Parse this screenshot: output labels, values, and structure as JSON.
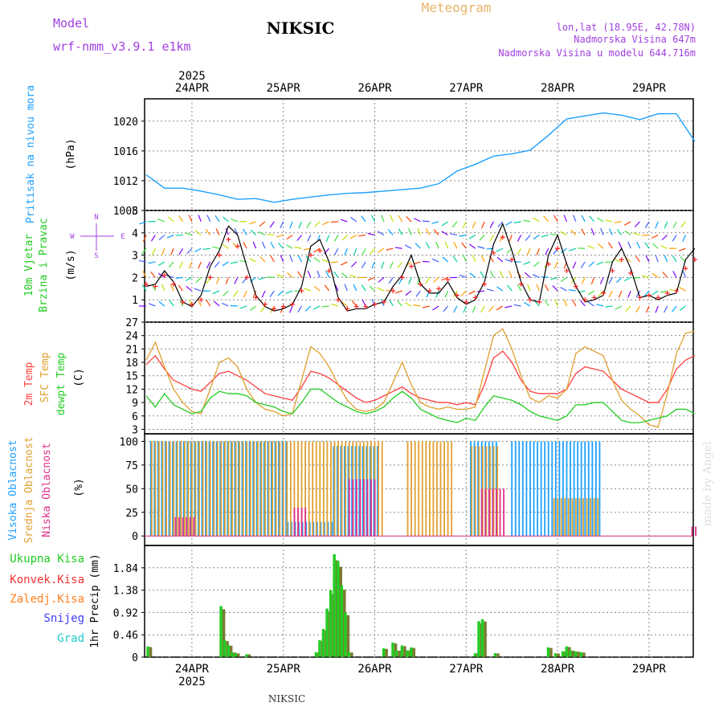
{
  "header": {
    "model_label": "Model",
    "model_name": "wrf-nmm_v3.9.1 e1km",
    "station": "NIKSIC",
    "meteogram": "Meteogram",
    "lonlat": "lon,lat (18.95E, 42.78N)",
    "altitude": "Nadmorska Visina 647m",
    "model_altitude": "Nadmorska Visina u modelu 644.716m",
    "year_top": "2025",
    "year_bottom": "2025",
    "footer_station": "NIKSIC",
    "credit": "made by Angel"
  },
  "colors": {
    "pressure": "#1ca0ff",
    "temp2m": "#ff3f3f",
    "sfc": "#e0a030",
    "dewpt": "#22cc22",
    "wind": "#000000",
    "gust": "#ff2020",
    "high_cloud": "#1ca0ff",
    "mid_cloud": "#e0a030",
    "low_cloud": "#e0308a",
    "total_precip": "#22cc22",
    "conv_precip": "#ee3333",
    "frozen_precip": "#ff8020",
    "snow": "#4040ff",
    "hail": "#22cccc",
    "purple_text": "#a040e0",
    "grid": "#888888"
  },
  "chart_data": [
    {
      "type": "line",
      "panel": "pressure",
      "ylabel": "Pritisak na nivou mora",
      "unit": "(hPa)",
      "ylim": [
        1008,
        1023
      ],
      "yticks": [
        1008,
        1012,
        1016,
        1020
      ],
      "x_days": [
        "24APR",
        "25APR",
        "26APR",
        "27APR",
        "28APR",
        "29APR"
      ],
      "x": [
        0,
        0.2,
        0.4,
        0.6,
        0.8,
        1.0,
        1.2,
        1.4,
        1.6,
        1.8,
        2.0,
        2.2,
        2.4,
        2.6,
        2.8,
        3.0,
        3.2,
        3.4,
        3.6,
        3.8,
        4.0,
        4.2,
        4.4,
        4.6,
        4.8,
        5.0,
        5.2,
        5.4,
        5.6,
        5.8,
        6.0
      ],
      "values": [
        1012.8,
        1011.0,
        1011.0,
        1010.6,
        1010.1,
        1009.5,
        1009.6,
        1009.1,
        1009.5,
        1009.8,
        1010.1,
        1010.3,
        1010.4,
        1010.6,
        1010.8,
        1011.0,
        1011.6,
        1013.3,
        1014.2,
        1015.3,
        1015.6,
        1016.1,
        1018.1,
        1020.3,
        1020.7,
        1021.1,
        1020.8,
        1020.2,
        1021.0,
        1021.0,
        1017.3
      ],
      "grid": true
    },
    {
      "type": "line",
      "panel": "wind",
      "ylabel": "10m Vjetar Brzina i Pravac",
      "unit": "(m/s)",
      "compass": [
        "N",
        "W",
        "E",
        "S"
      ],
      "ylim": [
        0,
        5
      ],
      "yticks": [
        1,
        2,
        3,
        4,
        5
      ],
      "series": [
        {
          "name": "wind",
          "x": [
            0,
            0.1,
            0.2,
            0.3,
            0.4,
            0.5,
            0.6,
            0.7,
            0.8,
            0.9,
            1.0,
            1.1,
            1.2,
            1.3,
            1.4,
            1.5,
            1.6,
            1.7,
            1.8,
            1.9,
            2.0,
            2.1,
            2.2,
            2.3,
            2.4,
            2.5,
            2.6,
            2.7,
            2.8,
            2.9,
            3.0,
            3.1,
            3.2,
            3.3,
            3.4,
            3.5,
            3.6,
            3.7,
            3.8,
            3.9,
            4.0,
            4.1,
            4.2,
            4.3,
            4.4,
            4.5,
            4.6,
            4.7,
            4.8,
            4.9,
            5.0,
            5.1,
            5.2,
            5.3,
            5.4,
            5.5,
            5.6,
            5.7,
            5.8,
            5.9,
            6.0
          ],
          "values": [
            1.6,
            1.7,
            2.3,
            1.8,
            0.9,
            0.7,
            1.2,
            2.5,
            3.2,
            4.3,
            3.9,
            2.5,
            1.2,
            0.7,
            0.5,
            0.6,
            0.8,
            1.6,
            3.4,
            3.7,
            2.7,
            1.1,
            0.5,
            0.6,
            0.6,
            0.8,
            0.9,
            1.6,
            2.1,
            3.0,
            1.7,
            1.3,
            1.3,
            1.8,
            1.1,
            0.8,
            1.0,
            1.8,
            3.5,
            4.4,
            3.2,
            1.8,
            1.0,
            0.9,
            3.0,
            3.9,
            2.6,
            1.6,
            0.9,
            1.0,
            1.2,
            2.7,
            3.3,
            2.4,
            1.1,
            1.2,
            1.0,
            1.2,
            1.3,
            2.8,
            3.3
          ]
        },
        {
          "name": "gust",
          "x": [
            0,
            0.1,
            0.2,
            0.3,
            0.4,
            0.5,
            0.6,
            0.7,
            0.8,
            0.9,
            1.0,
            1.1,
            1.2,
            1.3,
            1.4,
            1.5,
            1.6,
            1.7,
            1.8,
            1.9,
            2.0,
            2.1,
            2.2,
            2.3,
            2.4,
            2.5,
            2.6,
            2.7,
            2.8,
            2.9,
            3.0,
            3.1,
            3.2,
            3.3,
            3.4,
            3.5,
            3.6,
            3.7,
            3.8,
            3.9,
            4.0,
            4.1,
            4.2,
            4.3,
            4.4,
            4.5,
            4.6,
            4.7,
            4.8,
            4.9,
            5.0,
            5.1,
            5.2,
            5.3,
            5.4,
            5.5,
            5.6,
            5.7,
            5.8,
            5.9,
            6.0
          ],
          "values": [
            1.7,
            1.6,
            2.1,
            1.7,
            0.9,
            0.8,
            1.0,
            2.0,
            3.0,
            3.7,
            3.4,
            2.0,
            1.1,
            0.8,
            0.6,
            0.7,
            0.8,
            1.4,
            3.0,
            3.2,
            2.3,
            1.0,
            0.6,
            0.7,
            0.7,
            0.8,
            0.9,
            1.4,
            2.0,
            2.5,
            1.7,
            1.4,
            1.5,
            1.9,
            1.2,
            0.9,
            1.1,
            1.7,
            3.1,
            3.8,
            2.8,
            1.7,
            1.0,
            0.9,
            2.6,
            3.3,
            2.3,
            1.6,
            1.0,
            1.1,
            1.3,
            2.3,
            2.8,
            2.2,
            1.1,
            1.2,
            1.1,
            1.3,
            1.4,
            2.4,
            2.8
          ]
        }
      ],
      "grid": true
    },
    {
      "type": "line",
      "panel": "temperature",
      "ylabels": [
        "2m Temp",
        "SFC Temp",
        "dewpt Temp"
      ],
      "unit": "(C)",
      "ylim": [
        2,
        27
      ],
      "yticks": [
        3,
        6,
        9,
        12,
        15,
        18,
        21,
        24,
        27
      ],
      "series": [
        {
          "name": "2m Temp",
          "x": [
            0,
            0.1,
            0.2,
            0.3,
            0.4,
            0.5,
            0.6,
            0.7,
            0.8,
            0.9,
            1.0,
            1.1,
            1.2,
            1.3,
            1.4,
            1.5,
            1.6,
            1.7,
            1.8,
            1.9,
            2.0,
            2.1,
            2.2,
            2.3,
            2.4,
            2.5,
            2.6,
            2.7,
            2.8,
            2.9,
            3.0,
            3.1,
            3.2,
            3.3,
            3.4,
            3.5,
            3.6,
            3.7,
            3.8,
            3.9,
            4.0,
            4.1,
            4.2,
            4.3,
            4.4,
            4.5,
            4.6,
            4.7,
            4.8,
            4.9,
            5.0,
            5.1,
            5.2,
            5.3,
            5.4,
            5.5,
            5.6,
            5.7,
            5.8,
            5.9,
            6.0
          ],
          "values": [
            17.5,
            19.5,
            16.5,
            14.0,
            13.0,
            12.0,
            11.5,
            13.5,
            15.5,
            16.0,
            15.0,
            14.0,
            12.5,
            11.0,
            10.5,
            10.0,
            9.5,
            12.5,
            16.0,
            15.5,
            14.5,
            13.0,
            11.5,
            10.0,
            9.0,
            9.5,
            10.5,
            11.5,
            12.5,
            11.0,
            10.0,
            9.5,
            9.0,
            9.0,
            8.5,
            9.0,
            8.5,
            13.0,
            19.0,
            20.5,
            18.0,
            14.0,
            11.5,
            11.0,
            11.0,
            11.0,
            12.0,
            15.5,
            17.0,
            16.5,
            16.0,
            14.0,
            12.0,
            11.0,
            10.0,
            9.0,
            9.0,
            12.0,
            16.5,
            18.5,
            19.5
          ]
        },
        {
          "name": "SFC Temp",
          "x": [
            0,
            0.1,
            0.2,
            0.3,
            0.4,
            0.5,
            0.6,
            0.7,
            0.8,
            0.9,
            1.0,
            1.1,
            1.2,
            1.3,
            1.4,
            1.5,
            1.6,
            1.7,
            1.8,
            1.9,
            2.0,
            2.1,
            2.2,
            2.3,
            2.4,
            2.5,
            2.6,
            2.7,
            2.8,
            2.9,
            3.0,
            3.1,
            3.2,
            3.3,
            3.4,
            3.5,
            3.6,
            3.7,
            3.8,
            3.9,
            4.0,
            4.1,
            4.2,
            4.3,
            4.4,
            4.5,
            4.6,
            4.7,
            4.8,
            4.9,
            5.0,
            5.1,
            5.2,
            5.3,
            5.4,
            5.5,
            5.6,
            5.7,
            5.8,
            5.9,
            6.0
          ],
          "values": [
            18.5,
            22.5,
            17.0,
            12.0,
            9.0,
            7.0,
            6.5,
            12.0,
            18.0,
            19.0,
            17.0,
            12.0,
            9.0,
            7.5,
            7.0,
            6.0,
            6.5,
            14.0,
            21.5,
            20.0,
            17.0,
            13.0,
            9.5,
            7.5,
            7.0,
            7.5,
            9.0,
            13.5,
            18.0,
            13.0,
            9.0,
            8.0,
            7.5,
            8.0,
            7.5,
            7.5,
            8.0,
            16.0,
            24.0,
            25.5,
            21.0,
            15.0,
            10.0,
            9.0,
            10.5,
            10.0,
            12.0,
            20.0,
            21.5,
            20.5,
            19.5,
            14.0,
            9.5,
            7.5,
            6.0,
            4.0,
            3.5,
            11.0,
            20.0,
            24.5,
            25.0
          ]
        },
        {
          "name": "dewpt Temp",
          "x": [
            0,
            0.1,
            0.2,
            0.3,
            0.4,
            0.5,
            0.6,
            0.7,
            0.8,
            0.9,
            1.0,
            1.1,
            1.2,
            1.3,
            1.4,
            1.5,
            1.6,
            1.7,
            1.8,
            1.9,
            2.0,
            2.1,
            2.2,
            2.3,
            2.4,
            2.5,
            2.6,
            2.7,
            2.8,
            2.9,
            3.0,
            3.1,
            3.2,
            3.3,
            3.4,
            3.5,
            3.6,
            3.7,
            3.8,
            3.9,
            4.0,
            4.1,
            4.2,
            4.3,
            4.4,
            4.5,
            4.6,
            4.7,
            4.8,
            4.9,
            5.0,
            5.1,
            5.2,
            5.3,
            5.4,
            5.5,
            5.6,
            5.7,
            5.8,
            5.9,
            6.0
          ],
          "values": [
            10.5,
            8.0,
            11.0,
            8.5,
            7.5,
            6.5,
            7.0,
            10.0,
            11.5,
            11.0,
            11.0,
            10.5,
            9.0,
            8.5,
            8.0,
            7.0,
            6.5,
            9.0,
            12.0,
            12.0,
            10.5,
            9.0,
            8.0,
            7.0,
            6.5,
            7.0,
            8.0,
            10.0,
            11.5,
            10.0,
            7.5,
            6.5,
            5.5,
            5.0,
            4.5,
            5.5,
            5.0,
            8.0,
            10.5,
            10.0,
            9.5,
            8.5,
            7.0,
            6.0,
            5.5,
            5.0,
            6.0,
            8.5,
            8.5,
            9.0,
            9.0,
            7.0,
            5.0,
            4.5,
            4.5,
            5.0,
            5.5,
            6.0,
            7.5,
            7.5,
            6.5
          ]
        }
      ],
      "grid": true
    },
    {
      "type": "bar",
      "panel": "cloud",
      "ylabels": [
        "Visoka Oblacnost",
        "Srednja Oblacnost",
        "Niska Oblacnost"
      ],
      "unit": "(%)",
      "ylim": [
        0,
        100
      ],
      "yticks": [
        0,
        25,
        50,
        75,
        100
      ],
      "series": [
        {
          "name": "Visoka Oblacnost",
          "segments": [
            [
              0.05,
              1.55,
              100
            ],
            [
              1.55,
              2.05,
              15
            ],
            [
              2.05,
              2.55,
              95
            ],
            [
              3.55,
              3.85,
              100
            ],
            [
              4.0,
              5.0,
              100
            ]
          ]
        },
        {
          "name": "Srednja Oblacnost",
          "segments": [
            [
              0.05,
              2.6,
              100
            ],
            [
              2.85,
              3.35,
              100
            ],
            [
              3.55,
              3.85,
              95
            ],
            [
              4.45,
              4.95,
              40
            ]
          ]
        },
        {
          "name": "Niska Oblacnost",
          "segments": [
            [
              0.3,
              0.5,
              20
            ],
            [
              1.6,
              1.75,
              30
            ],
            [
              2.2,
              2.5,
              60
            ],
            [
              3.65,
              3.9,
              50
            ],
            [
              5.95,
              6.0,
              10
            ]
          ]
        }
      ],
      "grid": true
    },
    {
      "type": "bar",
      "panel": "precipitation",
      "legend": [
        "Ukupna Kisa",
        "Konvek.Kisa",
        "Zaledj.Kisa",
        "Snijeg",
        "Grad"
      ],
      "ylabel": "1hr Precip",
      "unit": "(mm)",
      "ylim": [
        0,
        2.3
      ],
      "yticks": [
        0,
        0.46,
        0.92,
        1.38,
        1.84
      ],
      "x": [
        0.02,
        0.82,
        0.86,
        0.9,
        0.94,
        0.98,
        1.1,
        1.86,
        1.9,
        1.94,
        1.98,
        2.02,
        2.06,
        2.1,
        2.14,
        2.18,
        2.22,
        2.6,
        2.7,
        2.74,
        2.8,
        2.86,
        2.9,
        3.6,
        3.64,
        3.68,
        3.82,
        4.4,
        4.48,
        4.56,
        4.6,
        4.64,
        4.7,
        4.76
      ],
      "values": [
        0.22,
        1.05,
        0.35,
        0.25,
        0.1,
        0.08,
        0.06,
        0.1,
        0.35,
        0.58,
        1.0,
        1.38,
        2.12,
        1.98,
        1.48,
        0.92,
        0.1,
        0.18,
        0.3,
        0.14,
        0.24,
        0.14,
        0.2,
        0.08,
        0.74,
        0.78,
        0.08,
        0.2,
        0.08,
        0.12,
        0.22,
        0.14,
        0.12,
        0.1
      ],
      "grid": true
    }
  ]
}
